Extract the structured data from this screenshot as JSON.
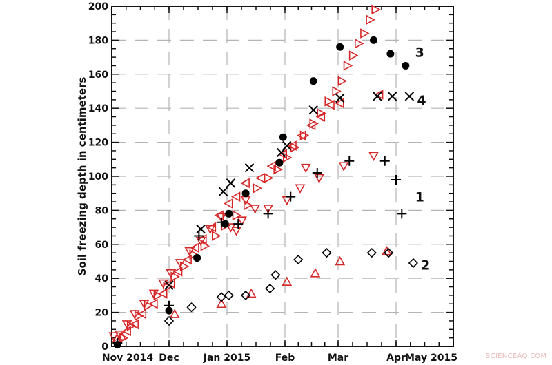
{
  "chart_data": {
    "type": "scatter",
    "title": "",
    "xlabel": "",
    "ylabel": "Soil freezing depth in centimeters",
    "ylim": [
      0,
      200
    ],
    "yticks": [
      0,
      20,
      40,
      60,
      80,
      100,
      120,
      140,
      160,
      180,
      200
    ],
    "xticks": [
      {
        "label": "Nov 2014",
        "day": 0
      },
      {
        "label": "Dec",
        "day": 30
      },
      {
        "label": "Jan 2015",
        "day": 61
      },
      {
        "label": "Feb",
        "day": 92
      },
      {
        "label": "Mar",
        "day": 120
      },
      {
        "label": "Apr",
        "day": 151
      },
      {
        "label": "May 2015",
        "day": 181
      }
    ],
    "x_unit": "days since Nov 1 2014",
    "grid": "dashed, at 20 cm intervals and at month boundaries",
    "series": [
      {
        "name": "1",
        "marker": "plus",
        "color": "#000000",
        "points": [
          [
            3,
            2
          ],
          [
            30,
            24
          ],
          [
            46,
            65
          ],
          [
            58,
            73
          ],
          [
            67,
            72
          ],
          [
            83,
            78
          ],
          [
            95,
            88
          ],
          [
            109,
            102
          ],
          [
            126,
            109
          ],
          [
            145,
            109
          ],
          [
            151,
            98
          ],
          [
            154,
            78
          ]
        ]
      },
      {
        "name": "2",
        "marker": "diamond-open",
        "color": "#000000",
        "points": [
          [
            30,
            15
          ],
          [
            42,
            23
          ],
          [
            58,
            29
          ],
          [
            62,
            30
          ],
          [
            71,
            30
          ],
          [
            84,
            34
          ],
          [
            87,
            42
          ],
          [
            99,
            51
          ],
          [
            114,
            55
          ],
          [
            138,
            55
          ],
          [
            147,
            55
          ],
          [
            160,
            49
          ]
        ]
      },
      {
        "name": "3",
        "marker": "circle-filled",
        "color": "#000000",
        "points": [
          [
            3,
            1
          ],
          [
            30,
            21
          ],
          [
            45,
            52
          ],
          [
            60,
            72
          ],
          [
            62,
            78
          ],
          [
            71,
            90
          ],
          [
            89,
            108
          ],
          [
            91,
            123
          ],
          [
            107,
            156
          ],
          [
            121,
            176
          ],
          [
            139,
            180
          ],
          [
            148,
            172
          ],
          [
            156,
            165
          ]
        ]
      },
      {
        "name": "4",
        "marker": "x",
        "color": "#000000",
        "points": [
          [
            30,
            36
          ],
          [
            47,
            69
          ],
          [
            59,
            91
          ],
          [
            63,
            96
          ],
          [
            73,
            105
          ],
          [
            90,
            114
          ],
          [
            93,
            118
          ],
          [
            107,
            139
          ],
          [
            121,
            146
          ],
          [
            141,
            147
          ],
          [
            149,
            147
          ],
          [
            158,
            147
          ]
        ]
      },
      {
        "name": "red-triangle-up",
        "marker": "triangle-up-open",
        "color": "#d62728",
        "points": [
          [
            5,
            6
          ],
          [
            33,
            19
          ],
          [
            58,
            25
          ],
          [
            74,
            31
          ],
          [
            93,
            38
          ],
          [
            108,
            43
          ],
          [
            121,
            50
          ],
          [
            146,
            56
          ]
        ]
      },
      {
        "name": "red-triangle-down",
        "marker": "triangle-down-open",
        "color": "#d62728",
        "points": [
          [
            1,
            6
          ],
          [
            4,
            7
          ],
          [
            8,
            13
          ],
          [
            12,
            19
          ],
          [
            17,
            25
          ],
          [
            22,
            31
          ],
          [
            27,
            37
          ],
          [
            31,
            43
          ],
          [
            36,
            49
          ],
          [
            41,
            56
          ],
          [
            47,
            62
          ],
          [
            52,
            69
          ],
          [
            58,
            76
          ],
          [
            63,
            70
          ],
          [
            66,
            68
          ],
          [
            69,
            74
          ],
          [
            71,
            86
          ],
          [
            76,
            81
          ],
          [
            83,
            81
          ],
          [
            93,
            86
          ],
          [
            100,
            93
          ],
          [
            103,
            105
          ],
          [
            110,
            99
          ],
          [
            123,
            106
          ],
          [
            139,
            112
          ]
        ]
      },
      {
        "name": "red-triangle-left",
        "marker": "triangle-left-open",
        "color": "#d62728",
        "points": [
          [
            3,
            3
          ],
          [
            8,
            9
          ],
          [
            12,
            13
          ],
          [
            16,
            19
          ],
          [
            22,
            25
          ],
          [
            27,
            31
          ],
          [
            31,
            37
          ],
          [
            35,
            44
          ],
          [
            40,
            51
          ],
          [
            44,
            58
          ],
          [
            48,
            63
          ],
          [
            53,
            70
          ],
          [
            57,
            77
          ],
          [
            62,
            84
          ],
          [
            66,
            88
          ],
          [
            71,
            96
          ],
          [
            79,
            99
          ],
          [
            85,
            106
          ],
          [
            91,
            113
          ],
          [
            96,
            118
          ],
          [
            101,
            124
          ],
          [
            106,
            130
          ],
          [
            111,
            135
          ],
          [
            116,
            142
          ],
          [
            121,
            143
          ],
          [
            142,
            148
          ]
        ]
      },
      {
        "name": "red-triangle-right",
        "marker": "triangle-right-open",
        "color": "#d62728",
        "points": [
          [
            6,
            5
          ],
          [
            10,
            12
          ],
          [
            14,
            18
          ],
          [
            19,
            24
          ],
          [
            24,
            30
          ],
          [
            29,
            35
          ],
          [
            33,
            41
          ],
          [
            38,
            47
          ],
          [
            43,
            54
          ],
          [
            49,
            59
          ],
          [
            55,
            65
          ],
          [
            60,
            71
          ],
          [
            66,
            77
          ],
          [
            72,
            83
          ],
          [
            77,
            93
          ],
          [
            83,
            99
          ],
          [
            88,
            104
          ],
          [
            93,
            111
          ],
          [
            97,
            117
          ],
          [
            102,
            124
          ],
          [
            107,
            131
          ],
          [
            111,
            137
          ],
          [
            115,
            144
          ],
          [
            119,
            150
          ],
          [
            122,
            156
          ],
          [
            125,
            165
          ],
          [
            128,
            171
          ],
          [
            131,
            178
          ],
          [
            134,
            184
          ],
          [
            137,
            192
          ],
          [
            140,
            198
          ]
        ]
      }
    ],
    "annotations": [
      {
        "text": "3",
        "day": 161,
        "depth": 173
      },
      {
        "text": "4",
        "day": 162,
        "depth": 145
      },
      {
        "text": "1",
        "day": 161,
        "depth": 88
      },
      {
        "text": "2",
        "day": 164,
        "depth": 48
      }
    ]
  },
  "watermark": "SCIENCEAQ.COM"
}
